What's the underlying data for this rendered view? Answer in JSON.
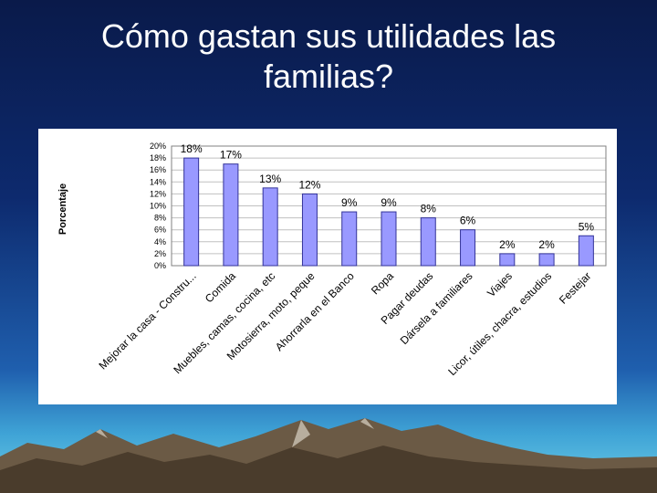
{
  "slide": {
    "title": "Cómo gastan sus utilidades las familias?"
  },
  "colors": {
    "bar_fill": "#9999ff",
    "bar_stroke": "#333399",
    "grid": "#c0c0c0",
    "background_top": "#0a1a4a",
    "background_bottom": "#6fd0e6"
  },
  "chart_data": {
    "type": "bar",
    "title": "",
    "xlabel": "",
    "ylabel": "Porcentaje",
    "ylim": [
      0,
      20
    ],
    "yticks": [
      "0%",
      "2%",
      "4%",
      "6%",
      "8%",
      "10%",
      "12%",
      "14%",
      "16%",
      "18%",
      "20%"
    ],
    "grid": true,
    "legend": "none",
    "categories": [
      "Mejorar la casa - Constru...",
      "Comida",
      "Muebles, camas, cocina, etc",
      "Motosierra, moto, peque",
      "Ahorrarla en el Banco",
      "Ropa",
      "Pagar deudas",
      "Dársela a familiares",
      "Viajes",
      "Licor, útiles, chacra, estudios",
      "Festejar"
    ],
    "values": [
      18,
      17,
      13,
      12,
      9,
      9,
      8,
      6,
      2,
      2,
      5
    ],
    "data_labels": [
      "18%",
      "17%",
      "13%",
      "12%",
      "9%",
      "9%",
      "8%",
      "6%",
      "2%",
      "2%",
      "5%"
    ]
  }
}
